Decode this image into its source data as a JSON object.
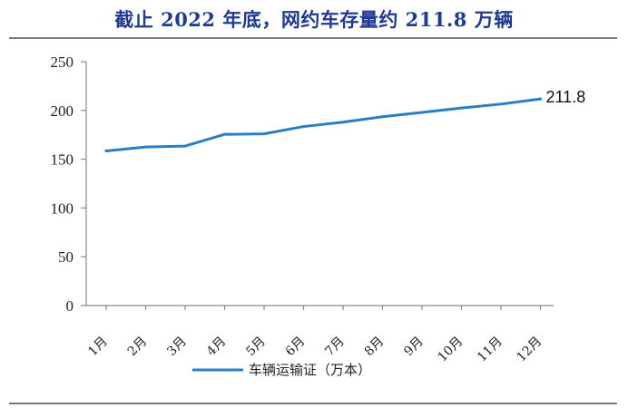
{
  "chart_data": {
    "type": "line",
    "title": "截止 2022 年底，网约车存量约 211.8 万辆",
    "categories": [
      "1月",
      "2月",
      "3月",
      "4月",
      "5月",
      "6月",
      "7月",
      "8月",
      "9月",
      "10月",
      "11月",
      "12月"
    ],
    "series": [
      {
        "name": "车辆运输证（万本）",
        "values": [
          158.5,
          162.5,
          163.5,
          175.5,
          176.0,
          183.5,
          188.0,
          193.5,
          198.0,
          202.5,
          206.5,
          211.8
        ],
        "color": "#2a7fc4"
      }
    ],
    "ylim": [
      0,
      250
    ],
    "yticks": [
      "0",
      "50",
      "100",
      "150",
      "200",
      "250"
    ],
    "data_label": {
      "index": 11,
      "text": "211.8"
    },
    "legend": "bottom-center",
    "grid": false
  }
}
